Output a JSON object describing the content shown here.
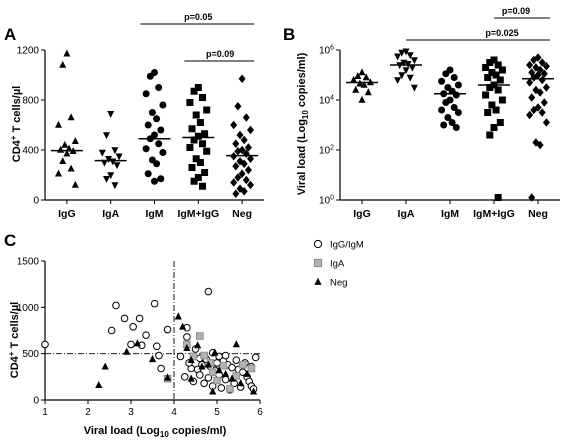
{
  "chart_data": [
    {
      "panel": "A",
      "type": "scatter",
      "ylabel_main": "CD4",
      "ylabel_sup": "+",
      "ylabel_rest": " T cells/µl",
      "ylim": [
        0,
        1200
      ],
      "yticks": [
        "0",
        "400",
        "800",
        "1200"
      ],
      "categories": [
        "IgG",
        "IgA",
        "IgM",
        "IgM+IgG",
        "Neg"
      ],
      "markers": [
        "triangle",
        "triangle-down",
        "circle",
        "square",
        "diamond"
      ],
      "medians": [
        395,
        315,
        490,
        500,
        355
      ],
      "brackets": [
        {
          "from": 2,
          "to": 4,
          "label": "p=0.05"
        },
        {
          "from": 3,
          "to": 4,
          "label": "p=0.09"
        }
      ],
      "series": [
        {
          "values": [
            1170,
            1080,
            660,
            600,
            470,
            440,
            410,
            400,
            390,
            370,
            310,
            250,
            210,
            120
          ]
        },
        {
          "values": [
            690,
            520,
            400,
            380,
            350,
            330,
            310,
            300,
            280,
            200,
            170,
            120
          ]
        },
        {
          "values": [
            1020,
            990,
            900,
            850,
            760,
            700,
            650,
            600,
            560,
            520,
            490,
            450,
            410,
            380,
            320,
            290,
            210,
            170,
            150
          ]
        },
        {
          "values": [
            900,
            870,
            820,
            780,
            720,
            680,
            620,
            570,
            530,
            510,
            480,
            450,
            420,
            390,
            330,
            300,
            260,
            220,
            180,
            150,
            110
          ]
        },
        {
          "values": [
            970,
            750,
            660,
            600,
            560,
            520,
            480,
            450,
            420,
            400,
            390,
            370,
            350,
            330,
            310,
            290,
            270,
            240,
            210,
            180,
            160,
            140,
            120,
            90,
            70,
            50
          ]
        }
      ]
    },
    {
      "panel": "B",
      "type": "scatter",
      "ylabel_main": "Viral load (Log",
      "ylabel_sub": "10",
      "ylabel_rest": " copies/ml)",
      "ylim_log10": [
        0,
        6
      ],
      "yticks": [
        {
          "base": "10",
          "exp": "0"
        },
        {
          "base": "10",
          "exp": "2"
        },
        {
          "base": "10",
          "exp": "4"
        },
        {
          "base": "10",
          "exp": "6"
        }
      ],
      "categories": [
        "IgG",
        "IgA",
        "IgM",
        "IgM+IgG",
        "Neg"
      ],
      "markers": [
        "triangle",
        "triangle-down",
        "circle",
        "square",
        "diamond"
      ],
      "medians_log10": [
        4.7,
        5.4,
        4.25,
        4.6,
        4.85
      ],
      "brackets": [
        {
          "from": 1,
          "to": 4,
          "label": "p=0.025"
        },
        {
          "from": 3,
          "to": 4,
          "label": "p=0.09"
        }
      ],
      "series": [
        {
          "values_log10": [
            5.1,
            4.95,
            4.9,
            4.8,
            4.7,
            4.65,
            4.6,
            4.4,
            4.3,
            4.0
          ]
        },
        {
          "values_log10": [
            5.95,
            5.9,
            5.8,
            5.75,
            5.6,
            5.5,
            5.45,
            5.4,
            5.3,
            5.2,
            5.0,
            4.9,
            4.8,
            4.5
          ]
        },
        {
          "values_log10": [
            5.2,
            5.05,
            4.9,
            4.75,
            4.6,
            4.5,
            4.35,
            4.25,
            4.2,
            4.0,
            3.9,
            3.7,
            3.6,
            3.5,
            3.3,
            3.1,
            3.0,
            2.9
          ]
        },
        {
          "values_log10": [
            5.6,
            5.5,
            5.4,
            5.3,
            5.2,
            5.1,
            5.0,
            4.9,
            4.8,
            4.6,
            4.5,
            4.4,
            4.2,
            4.0,
            3.8,
            3.6,
            3.5,
            3.1,
            2.9,
            2.6,
            0.1
          ]
        },
        {
          "values_log10": [
            5.7,
            5.6,
            5.5,
            5.4,
            5.35,
            5.3,
            5.2,
            5.1,
            5.05,
            5.0,
            4.9,
            4.8,
            4.7,
            4.5,
            4.4,
            4.3,
            4.1,
            3.9,
            3.7,
            3.6,
            3.5,
            3.4,
            3.1,
            2.3,
            2.2,
            0.1
          ]
        }
      ]
    },
    {
      "panel": "C",
      "type": "scatter",
      "xlabel_main": "Viral load (Log",
      "xlabel_sub": "10",
      "xlabel_rest": " copies/ml)",
      "ylabel_main": "CD4",
      "ylabel_sup": "+",
      "ylabel_rest": " T cells/µl",
      "xlim": [
        1,
        6
      ],
      "ylim": [
        0,
        1500
      ],
      "xticks": [
        "1",
        "2",
        "3",
        "4",
        "5",
        "6"
      ],
      "yticks": [
        "0",
        "500",
        "1000",
        "1500"
      ],
      "reference_lines": {
        "x": 4,
        "y": 500
      },
      "legend": [
        "IgG/IgM",
        "IgA",
        "Neg"
      ],
      "markers": [
        "circle",
        "square",
        "triangle"
      ],
      "series": [
        {
          "name": "IgG/IgM",
          "points": [
            [
              1.0,
              600
            ],
            [
              2.65,
              1020
            ],
            [
              2.85,
              880
            ],
            [
              3.05,
              790
            ],
            [
              3.2,
              880
            ],
            [
              3.55,
              1040
            ],
            [
              3.0,
              600
            ],
            [
              3.25,
              590
            ],
            [
              3.6,
              580
            ],
            [
              2.55,
              750
            ],
            [
              3.35,
              700
            ],
            [
              3.85,
              760
            ],
            [
              4.3,
              780
            ],
            [
              4.3,
              680
            ],
            [
              4.5,
              550
            ],
            [
              4.8,
              1170
            ],
            [
              4.15,
              470
            ],
            [
              3.65,
              480
            ],
            [
              3.7,
              340
            ],
            [
              4.4,
              340
            ],
            [
              4.55,
              330
            ],
            [
              4.6,
              270
            ],
            [
              4.8,
              240
            ],
            [
              4.75,
              440
            ],
            [
              4.9,
              510
            ],
            [
              5.05,
              470
            ],
            [
              5.15,
              420
            ],
            [
              5.25,
              380
            ],
            [
              5.35,
              350
            ],
            [
              5.5,
              330
            ],
            [
              5.6,
              300
            ],
            [
              5.7,
              250
            ],
            [
              5.75,
              200
            ],
            [
              5.8,
              150
            ],
            [
              5.85,
              120
            ],
            [
              4.95,
              320
            ],
            [
              5.05,
              270
            ],
            [
              5.2,
              220
            ],
            [
              5.4,
              180
            ],
            [
              5.55,
              140
            ],
            [
              4.25,
              250
            ],
            [
              4.45,
              200
            ],
            [
              4.7,
              180
            ],
            [
              4.9,
              150
            ],
            [
              5.1,
              130
            ],
            [
              5.3,
              110
            ],
            [
              5.45,
              430
            ],
            [
              5.65,
              400
            ],
            [
              5.9,
              460
            ],
            [
              4.35,
              400
            ],
            [
              4.65,
              380
            ],
            [
              4.85,
              360
            ],
            [
              5.0,
              400
            ],
            [
              5.8,
              360
            ],
            [
              4.6,
              450
            ],
            [
              5.2,
              480
            ]
          ]
        },
        {
          "name": "IgA",
          "points": [
            [
              3.85,
              230
            ],
            [
              4.3,
              600
            ],
            [
              4.45,
              470
            ],
            [
              4.6,
              690
            ],
            [
              4.7,
              480
            ],
            [
              4.85,
              400
            ],
            [
              4.9,
              300
            ],
            [
              5.0,
              210
            ],
            [
              5.15,
              370
            ],
            [
              5.3,
              120
            ],
            [
              5.45,
              260
            ],
            [
              5.6,
              380
            ],
            [
              5.8,
              340
            ]
          ]
        },
        {
          "name": "Neg",
          "points": [
            [
              2.25,
              160
            ],
            [
              2.4,
              360
            ],
            [
              2.9,
              520
            ],
            [
              3.15,
              610
            ],
            [
              3.5,
              440
            ],
            [
              3.85,
              240
            ],
            [
              4.1,
              900
            ],
            [
              4.2,
              790
            ],
            [
              4.3,
              560
            ],
            [
              4.4,
              430
            ],
            [
              4.55,
              590
            ],
            [
              4.65,
              360
            ],
            [
              4.8,
              380
            ],
            [
              4.95,
              510
            ],
            [
              5.05,
              320
            ],
            [
              5.2,
              280
            ],
            [
              5.35,
              230
            ],
            [
              5.45,
              600
            ],
            [
              5.55,
              180
            ],
            [
              5.7,
              280
            ],
            [
              5.85,
              90
            ],
            [
              4.4,
              230
            ],
            [
              4.9,
              90
            ]
          ]
        }
      ]
    }
  ]
}
